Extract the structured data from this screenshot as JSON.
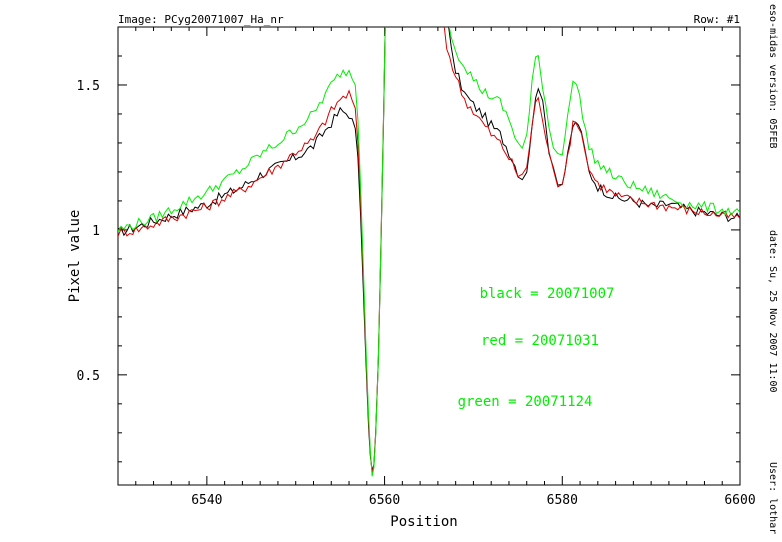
{
  "header": {
    "image_label": "Image:  PCyg20071007_Ha_nr",
    "row_label": "Row:  #1"
  },
  "side_info": {
    "version": "eso-midas version: 05FEB",
    "date": "date: Su, 25 Nov 2007 11:00",
    "user": "User: lothar"
  },
  "chart_data": {
    "type": "line",
    "xlabel": "Position",
    "ylabel": "Pixel value",
    "xlim": [
      6530,
      6600
    ],
    "ylim": [
      0.12,
      1.7
    ],
    "xticks": [
      6540,
      6560,
      6580,
      6600
    ],
    "xtick_labels": [
      "6540",
      "6560",
      "6580",
      "6600"
    ],
    "yticks": [
      0.5,
      1,
      1.5
    ],
    "ytick_labels": [
      "0.5",
      "1",
      "1.5"
    ],
    "grid": false,
    "legend_text": [
      {
        "text": "black = 20071007",
        "color": "#00ee00"
      },
      {
        "text": "red = 20071031",
        "color": "#00ee00"
      },
      {
        "text": "green = 20071124",
        "color": "#00ee00"
      }
    ],
    "series": [
      {
        "color": "#000000",
        "points": [
          [
            6530,
            0.99
          ],
          [
            6532,
            1.01
          ],
          [
            6534,
            1.03
          ],
          [
            6536,
            1.05
          ],
          [
            6538,
            1.07
          ],
          [
            6540,
            1.09
          ],
          [
            6542,
            1.12
          ],
          [
            6544,
            1.15
          ],
          [
            6546,
            1.19
          ],
          [
            6548,
            1.22
          ],
          [
            6550,
            1.25
          ],
          [
            6552,
            1.29
          ],
          [
            6553,
            1.33
          ],
          [
            6554,
            1.37
          ],
          [
            6555,
            1.41
          ],
          [
            6556,
            1.4
          ],
          [
            6556.7,
            1.35
          ],
          [
            6557.0,
            1.25
          ],
          [
            6557.3,
            1.05
          ],
          [
            6557.6,
            0.8
          ],
          [
            6557.9,
            0.55
          ],
          [
            6558.2,
            0.32
          ],
          [
            6558.4,
            0.22
          ],
          [
            6558.6,
            0.17
          ],
          [
            6558.8,
            0.19
          ],
          [
            6559.0,
            0.3
          ],
          [
            6559.3,
            0.55
          ],
          [
            6559.6,
            0.95
          ],
          [
            6559.9,
            1.4
          ],
          [
            6560.1,
            1.75
          ],
          [
            6567.0,
            1.75
          ],
          [
            6567.5,
            1.62
          ],
          [
            6568,
            1.55
          ],
          [
            6569,
            1.47
          ],
          [
            6570,
            1.43
          ],
          [
            6571,
            1.4
          ],
          [
            6572,
            1.36
          ],
          [
            6573,
            1.33
          ],
          [
            6574,
            1.27
          ],
          [
            6575,
            1.2
          ],
          [
            6575.5,
            1.18
          ],
          [
            6576,
            1.21
          ],
          [
            6576.6,
            1.35
          ],
          [
            6577.0,
            1.47
          ],
          [
            6577.3,
            1.5
          ],
          [
            6577.8,
            1.43
          ],
          [
            6578.5,
            1.28
          ],
          [
            6579,
            1.22
          ],
          [
            6579.5,
            1.17
          ],
          [
            6580,
            1.16
          ],
          [
            6580.6,
            1.25
          ],
          [
            6581.2,
            1.36
          ],
          [
            6581.8,
            1.37
          ],
          [
            6582.5,
            1.28
          ],
          [
            6583,
            1.2
          ],
          [
            6584,
            1.15
          ],
          [
            6586,
            1.11
          ],
          [
            6588,
            1.1
          ],
          [
            6590,
            1.08
          ],
          [
            6592,
            1.09
          ],
          [
            6594,
            1.07
          ],
          [
            6596,
            1.06
          ],
          [
            6598,
            1.05
          ],
          [
            6600,
            1.04
          ]
        ]
      },
      {
        "color": "#dd0000",
        "points": [
          [
            6530,
            0.99
          ],
          [
            6532,
            1.0
          ],
          [
            6534,
            1.02
          ],
          [
            6536,
            1.04
          ],
          [
            6538,
            1.06
          ],
          [
            6540,
            1.08
          ],
          [
            6542,
            1.11
          ],
          [
            6544,
            1.14
          ],
          [
            6546,
            1.18
          ],
          [
            6548,
            1.22
          ],
          [
            6550,
            1.27
          ],
          [
            6552,
            1.31
          ],
          [
            6553,
            1.36
          ],
          [
            6554,
            1.41
          ],
          [
            6555,
            1.45
          ],
          [
            6556,
            1.47
          ],
          [
            6556.7,
            1.42
          ],
          [
            6557.0,
            1.3
          ],
          [
            6557.3,
            1.1
          ],
          [
            6557.6,
            0.85
          ],
          [
            6557.9,
            0.58
          ],
          [
            6558.2,
            0.34
          ],
          [
            6558.4,
            0.23
          ],
          [
            6558.6,
            0.16
          ],
          [
            6558.8,
            0.19
          ],
          [
            6559.0,
            0.3
          ],
          [
            6559.3,
            0.56
          ],
          [
            6559.6,
            0.97
          ],
          [
            6559.9,
            1.42
          ],
          [
            6560.1,
            1.75
          ],
          [
            6566.4,
            1.75
          ],
          [
            6567.0,
            1.63
          ],
          [
            6568,
            1.53
          ],
          [
            6569,
            1.45
          ],
          [
            6570,
            1.41
          ],
          [
            6571,
            1.37
          ],
          [
            6572,
            1.33
          ],
          [
            6573,
            1.3
          ],
          [
            6574,
            1.25
          ],
          [
            6575,
            1.19
          ],
          [
            6575.5,
            1.18
          ],
          [
            6576,
            1.22
          ],
          [
            6576.6,
            1.36
          ],
          [
            6577.0,
            1.44
          ],
          [
            6577.3,
            1.45
          ],
          [
            6577.8,
            1.38
          ],
          [
            6578.5,
            1.26
          ],
          [
            6579,
            1.2
          ],
          [
            6579.5,
            1.16
          ],
          [
            6580,
            1.17
          ],
          [
            6580.6,
            1.26
          ],
          [
            6581.2,
            1.36
          ],
          [
            6581.8,
            1.37
          ],
          [
            6582.5,
            1.29
          ],
          [
            6583,
            1.21
          ],
          [
            6584,
            1.16
          ],
          [
            6586,
            1.12
          ],
          [
            6588,
            1.1
          ],
          [
            6590,
            1.09
          ],
          [
            6592,
            1.08
          ],
          [
            6594,
            1.07
          ],
          [
            6596,
            1.06
          ],
          [
            6598,
            1.05
          ],
          [
            6600,
            1.04
          ]
        ]
      },
      {
        "color": "#00ee00",
        "points": [
          [
            6530,
            1.0
          ],
          [
            6532,
            1.02
          ],
          [
            6534,
            1.04
          ],
          [
            6536,
            1.07
          ],
          [
            6538,
            1.1
          ],
          [
            6540,
            1.13
          ],
          [
            6542,
            1.17
          ],
          [
            6544,
            1.21
          ],
          [
            6546,
            1.26
          ],
          [
            6548,
            1.3
          ],
          [
            6550,
            1.35
          ],
          [
            6552,
            1.4
          ],
          [
            6553,
            1.45
          ],
          [
            6554,
            1.5
          ],
          [
            6555,
            1.54
          ],
          [
            6556,
            1.55
          ],
          [
            6556.7,
            1.5
          ],
          [
            6557.0,
            1.38
          ],
          [
            6557.3,
            1.15
          ],
          [
            6557.6,
            0.88
          ],
          [
            6557.9,
            0.6
          ],
          [
            6558.2,
            0.36
          ],
          [
            6558.4,
            0.24
          ],
          [
            6558.6,
            0.15
          ],
          [
            6558.8,
            0.18
          ],
          [
            6559.0,
            0.29
          ],
          [
            6559.3,
            0.55
          ],
          [
            6559.6,
            0.96
          ],
          [
            6559.9,
            1.41
          ],
          [
            6560.1,
            1.75
          ],
          [
            6566.9,
            1.75
          ],
          [
            6567.5,
            1.68
          ],
          [
            6568,
            1.62
          ],
          [
            6569,
            1.57
          ],
          [
            6570,
            1.52
          ],
          [
            6571,
            1.48
          ],
          [
            6572,
            1.46
          ],
          [
            6573,
            1.44
          ],
          [
            6574,
            1.38
          ],
          [
            6575,
            1.3
          ],
          [
            6575.5,
            1.28
          ],
          [
            6576,
            1.32
          ],
          [
            6576.6,
            1.5
          ],
          [
            6577.0,
            1.59
          ],
          [
            6577.3,
            1.6
          ],
          [
            6577.8,
            1.5
          ],
          [
            6578.5,
            1.36
          ],
          [
            6579,
            1.29
          ],
          [
            6579.5,
            1.26
          ],
          [
            6580,
            1.27
          ],
          [
            6580.6,
            1.4
          ],
          [
            6581.2,
            1.5
          ],
          [
            6581.6,
            1.51
          ],
          [
            6582.3,
            1.4
          ],
          [
            6583,
            1.28
          ],
          [
            6584,
            1.23
          ],
          [
            6586,
            1.18
          ],
          [
            6588,
            1.15
          ],
          [
            6590,
            1.13
          ],
          [
            6592,
            1.11
          ],
          [
            6594,
            1.09
          ],
          [
            6596,
            1.08
          ],
          [
            6598,
            1.07
          ],
          [
            6600,
            1.06
          ]
        ]
      }
    ]
  }
}
